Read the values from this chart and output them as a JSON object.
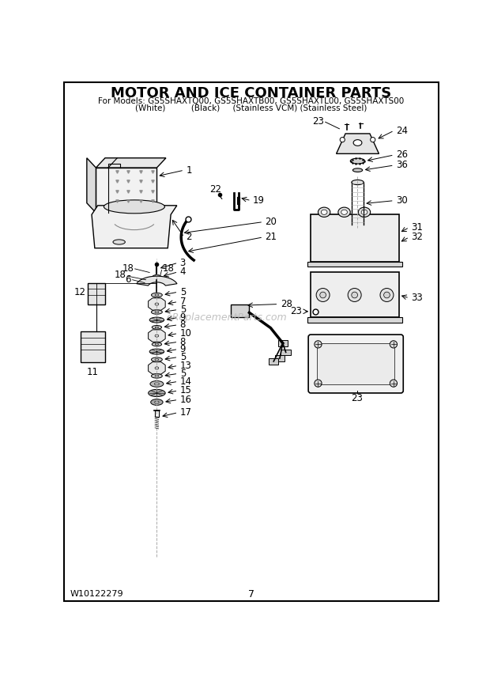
{
  "title": "MOTOR AND ICE CONTAINER PARTS",
  "subtitle1": "For Models: GS5SHAXTQ00, GS5SHAXTB00, GS5SHAXTL00, GS5SHAXTS00",
  "subtitle2": "(White)          (Black)     (Stainless VCM) (Stainless Steel)",
  "footer_left": "W10122279",
  "footer_center": "7",
  "bg_color": "#ffffff",
  "watermark": "eReplacementParts.com"
}
